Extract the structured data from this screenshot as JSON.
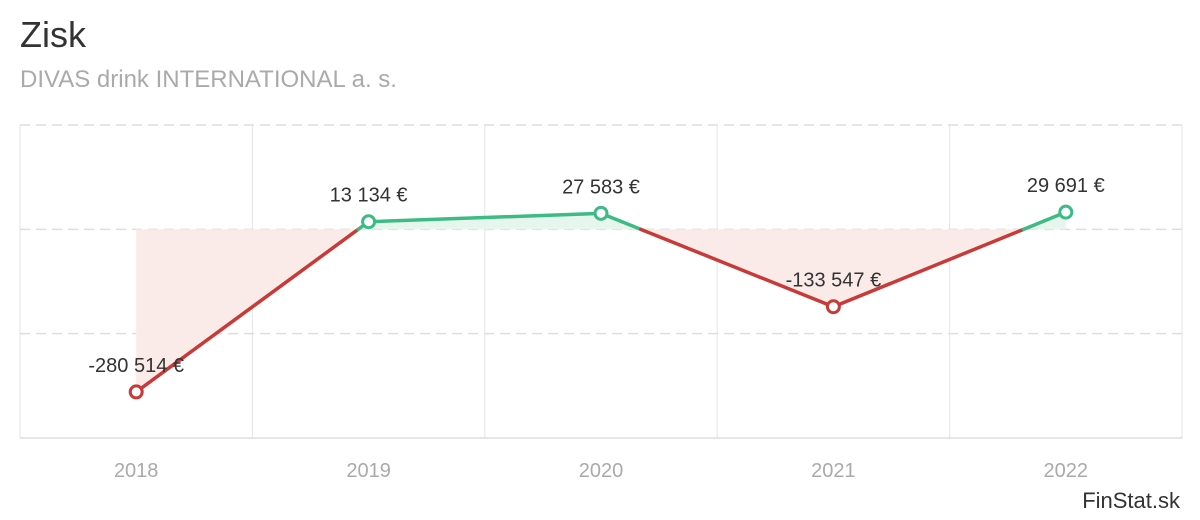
{
  "header": {
    "title": "Zisk",
    "subtitle": "DIVAS drink INTERNATIONAL a. s."
  },
  "credit": "FinStat.sk",
  "chart_data": {
    "type": "line",
    "title": "Zisk",
    "subtitle": "DIVAS drink INTERNATIONAL a. s.",
    "categories": [
      "2018",
      "2019",
      "2020",
      "2021",
      "2022"
    ],
    "values": [
      -280514,
      13134,
      27583,
      -133547,
      29691
    ],
    "data_labels": [
      "-280 514 €",
      "13 134 €",
      "27 583 €",
      "-133 547 €",
      "29 691 €"
    ],
    "ylim": [
      -360000,
      180000
    ],
    "gridlines": [
      -180000,
      0,
      180000
    ],
    "colors": {
      "positive": "#3dbb85",
      "negative": "#c83a38",
      "positive_fill": "#e6f6ee",
      "negative_fill": "#fbebe8"
    },
    "xlabel": "",
    "ylabel": ""
  }
}
